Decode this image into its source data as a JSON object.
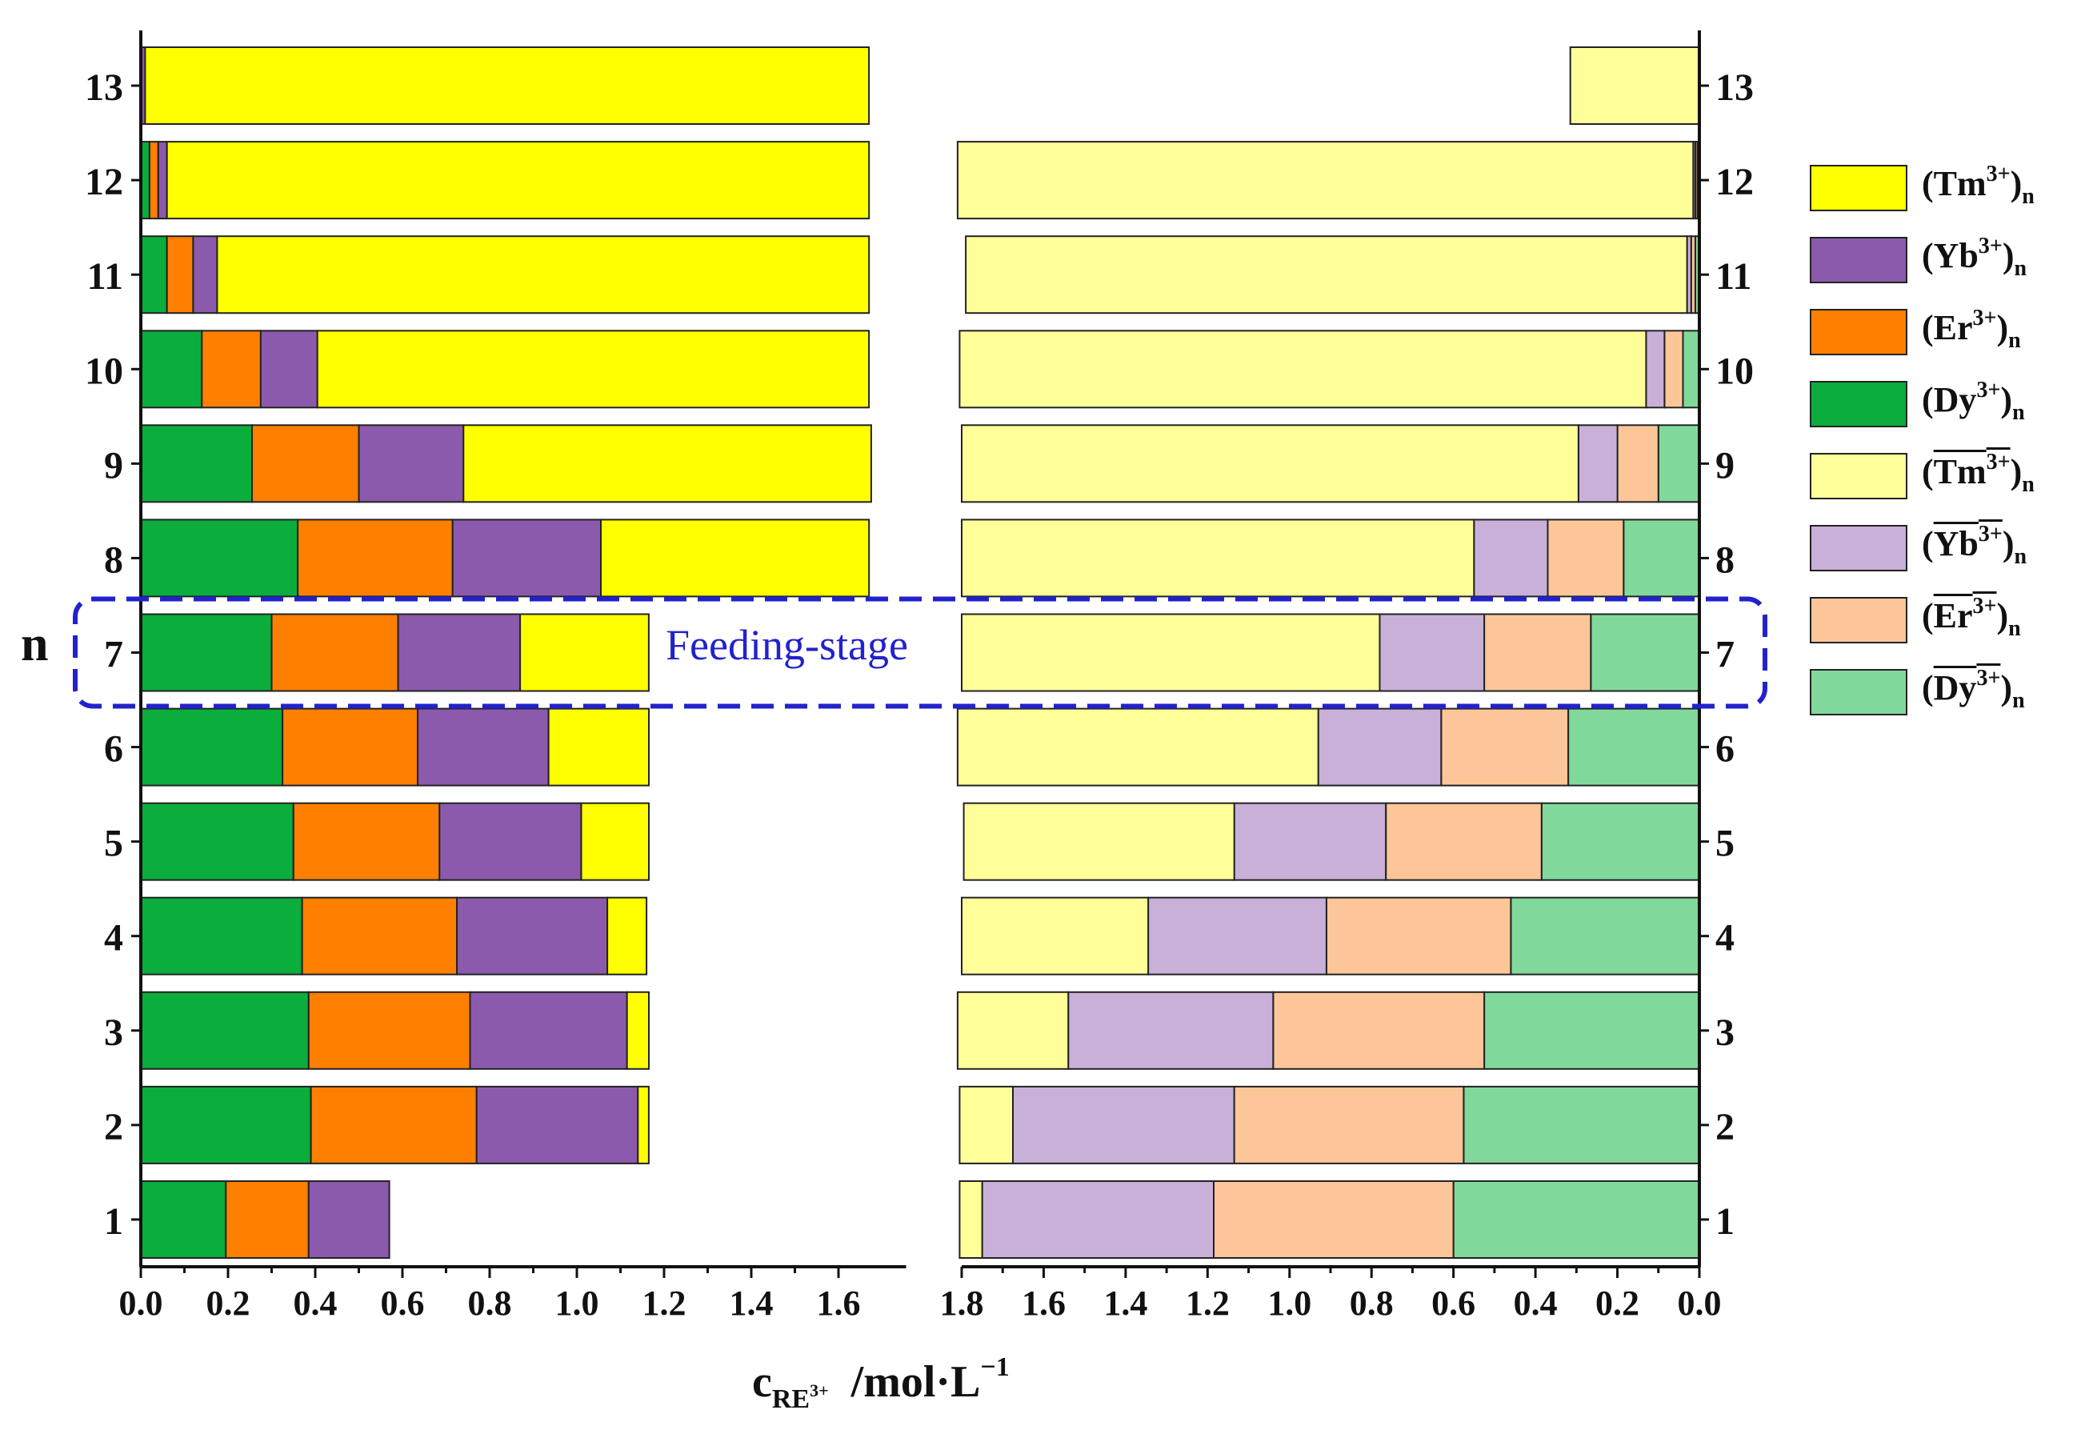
{
  "chart_data": {
    "type": "bar",
    "orientation": "horizontal-stacked",
    "ylabel": "n",
    "xlabel": {
      "main": "c",
      "sub": "RE",
      "subsup": "3+",
      "unit": "/mol·L",
      "unit_sup": "−1"
    },
    "stages": [
      "1",
      "2",
      "3",
      "4",
      "5",
      "6",
      "7",
      "8",
      "9",
      "10",
      "11",
      "12",
      "13"
    ],
    "annotation": "Feeding-stage",
    "annotation_stage": "7",
    "left_panel": {
      "xlim": [
        0,
        1.7
      ],
      "ticks": [
        "0.0",
        "0.2",
        "0.4",
        "0.6",
        "0.8",
        "1.0",
        "1.2",
        "1.4",
        "1.6"
      ],
      "series": [
        {
          "key": "Dy",
          "name": "(Dy3+)n",
          "color": "#0BAD3C",
          "values": [
            0.195,
            0.39,
            0.385,
            0.37,
            0.35,
            0.325,
            0.3,
            0.36,
            0.255,
            0.14,
            0.06,
            0.02,
            0.0
          ]
        },
        {
          "key": "Er",
          "name": "(Er3+)n",
          "color": "#FF7F00",
          "values": [
            0.19,
            0.38,
            0.37,
            0.355,
            0.335,
            0.31,
            0.29,
            0.355,
            0.245,
            0.135,
            0.06,
            0.02,
            0.0
          ]
        },
        {
          "key": "Yb",
          "name": "(Yb3+)n",
          "color": "#8C5AAC",
          "values": [
            0.185,
            0.37,
            0.36,
            0.345,
            0.325,
            0.3,
            0.28,
            0.34,
            0.24,
            0.13,
            0.055,
            0.02,
            0.01
          ]
        },
        {
          "key": "Tm",
          "name": "(Tm3+)n",
          "color": "#FFFF00",
          "values": [
            0.0,
            0.025,
            0.05,
            0.09,
            0.155,
            0.23,
            0.295,
            0.615,
            0.935,
            1.265,
            1.495,
            1.61,
            1.66
          ]
        }
      ]
    },
    "right_panel": {
      "xlim": [
        1.8,
        0.0
      ],
      "ticks": [
        "1.8",
        "1.6",
        "1.4",
        "1.2",
        "1.0",
        "0.8",
        "0.6",
        "0.4",
        "0.2",
        "0.0"
      ],
      "series": [
        {
          "key": "Dy",
          "name": "(Dy3+)n organic",
          "color": "#80D99A",
          "values": [
            0.6,
            0.575,
            0.525,
            0.46,
            0.385,
            0.32,
            0.265,
            0.185,
            0.1,
            0.04,
            0.01,
            0.005,
            0.0
          ]
        },
        {
          "key": "Er",
          "name": "(Er3+)n organic",
          "color": "#FCC698",
          "values": [
            0.585,
            0.56,
            0.515,
            0.45,
            0.38,
            0.31,
            0.26,
            0.185,
            0.1,
            0.045,
            0.01,
            0.005,
            0.0
          ]
        },
        {
          "key": "Yb",
          "name": "(Yb3+)n organic",
          "color": "#C8B0D8",
          "values": [
            0.565,
            0.54,
            0.5,
            0.435,
            0.37,
            0.3,
            0.255,
            0.18,
            0.095,
            0.045,
            0.01,
            0.005,
            0.0
          ]
        },
        {
          "key": "Tm",
          "name": "(Tm3+)n organic",
          "color": "#FFFF99",
          "values": [
            0.055,
            0.13,
            0.27,
            0.455,
            0.66,
            0.88,
            1.02,
            1.25,
            1.505,
            1.675,
            1.76,
            1.795,
            0.315
          ]
        }
      ]
    },
    "legend": [
      {
        "ion": "Tm",
        "charge": "3+",
        "sub": "n",
        "bar": false,
        "color": "#FFFF00"
      },
      {
        "ion": "Yb",
        "charge": "3+",
        "sub": "n",
        "bar": false,
        "color": "#8C5AAC"
      },
      {
        "ion": "Er",
        "charge": "3+",
        "sub": "n",
        "bar": false,
        "color": "#FF7F00"
      },
      {
        "ion": "Dy",
        "charge": "3+",
        "sub": "n",
        "bar": false,
        "color": "#0BAD3C"
      },
      {
        "ion": "Tm",
        "charge": "3+",
        "sub": "n",
        "bar": true,
        "color": "#FFFF99"
      },
      {
        "ion": "Yb",
        "charge": "3+",
        "sub": "n",
        "bar": true,
        "color": "#C8B0D8"
      },
      {
        "ion": "Er",
        "charge": "3+",
        "sub": "n",
        "bar": true,
        "color": "#FCC698"
      },
      {
        "ion": "Dy",
        "charge": "3+",
        "sub": "n",
        "bar": true,
        "color": "#80D99A"
      }
    ]
  }
}
